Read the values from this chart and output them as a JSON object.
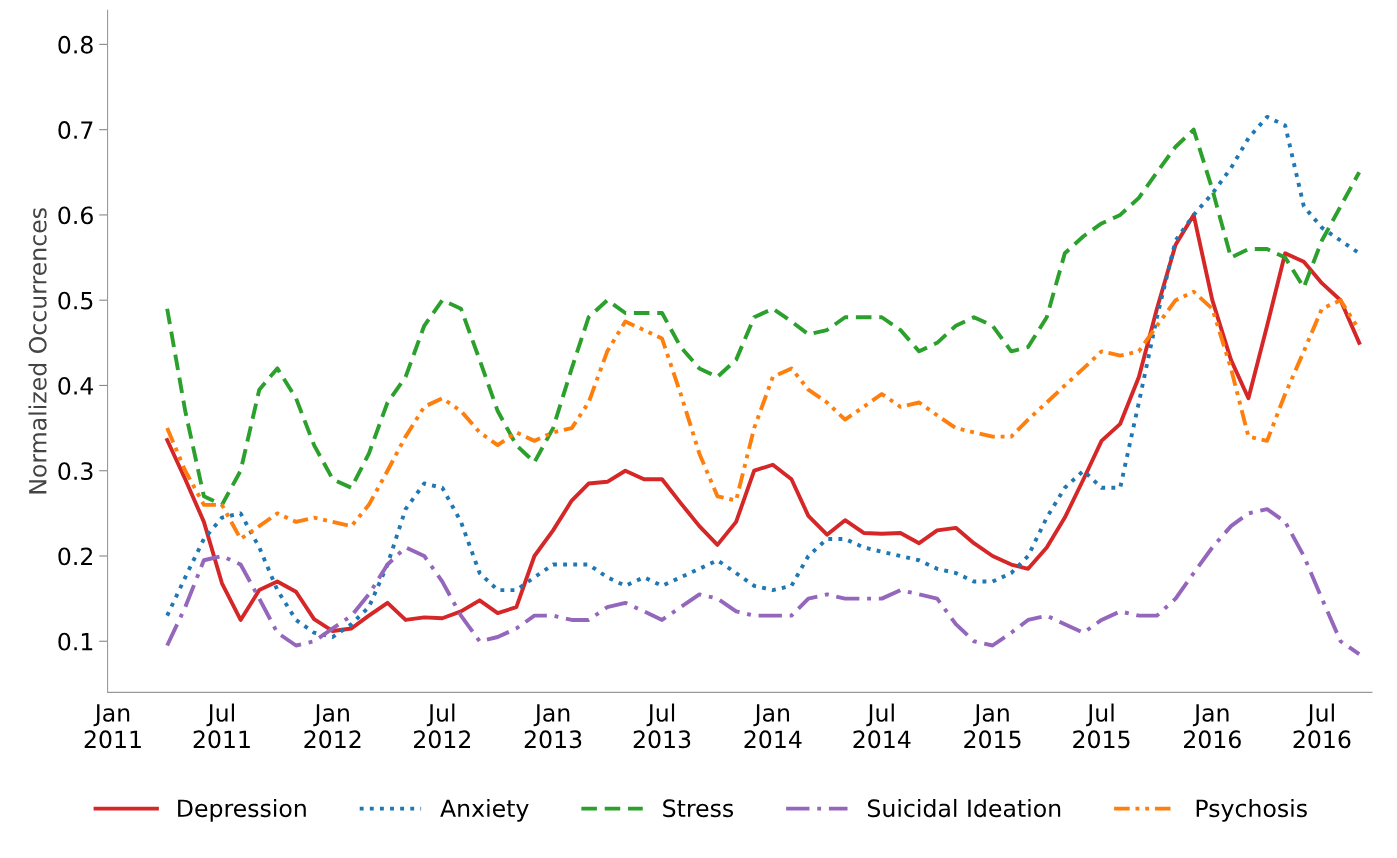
{
  "chart_data": {
    "type": "line",
    "ylabel": "Normalized Occurrences",
    "x": [
      "2011-04",
      "2011-05",
      "2011-06",
      "2011-07",
      "2011-08",
      "2011-09",
      "2011-10",
      "2011-11",
      "2011-12",
      "2012-01",
      "2012-02",
      "2012-03",
      "2012-04",
      "2012-05",
      "2012-06",
      "2012-07",
      "2012-08",
      "2012-09",
      "2012-10",
      "2012-11",
      "2012-12",
      "2013-01",
      "2013-02",
      "2013-03",
      "2013-04",
      "2013-05",
      "2013-06",
      "2013-07",
      "2013-08",
      "2013-09",
      "2013-10",
      "2013-11",
      "2013-12",
      "2014-01",
      "2014-02",
      "2014-03",
      "2014-04",
      "2014-05",
      "2014-06",
      "2014-07",
      "2014-08",
      "2014-09",
      "2014-10",
      "2014-11",
      "2014-12",
      "2015-01",
      "2015-02",
      "2015-03",
      "2015-04",
      "2015-05",
      "2015-06",
      "2015-07",
      "2015-08",
      "2015-09",
      "2015-10",
      "2015-11",
      "2015-12",
      "2016-01",
      "2016-02",
      "2016-03",
      "2016-04",
      "2016-05",
      "2016-06",
      "2016-07",
      "2016-08",
      "2016-09"
    ],
    "series": [
      {
        "name": "Depression",
        "color": "#d62728",
        "line_style": "solid",
        "values": [
          0.336,
          0.29,
          0.24,
          0.168,
          0.125,
          0.16,
          0.17,
          0.158,
          0.126,
          0.112,
          0.115,
          0.13,
          0.145,
          0.125,
          0.128,
          0.127,
          0.135,
          0.148,
          0.133,
          0.14,
          0.2,
          0.23,
          0.265,
          0.285,
          0.287,
          0.3,
          0.29,
          0.29,
          0.262,
          0.235,
          0.213,
          0.24,
          0.3,
          0.307,
          0.29,
          0.247,
          0.225,
          0.242,
          0.227,
          0.226,
          0.227,
          0.215,
          0.23,
          0.233,
          0.215,
          0.2,
          0.19,
          0.185,
          0.21,
          0.245,
          0.29,
          0.335,
          0.355,
          0.41,
          0.49,
          0.565,
          0.6,
          0.5,
          0.43,
          0.385,
          0.47,
          0.555,
          0.545,
          0.52,
          0.5,
          0.45
        ]
      },
      {
        "name": "Anxiety",
        "color": "#1f77b4",
        "line_style": "dotted",
        "values": [
          0.13,
          0.175,
          0.22,
          0.245,
          0.25,
          0.21,
          0.16,
          0.125,
          0.11,
          0.105,
          0.12,
          0.14,
          0.19,
          0.255,
          0.285,
          0.28,
          0.24,
          0.18,
          0.16,
          0.16,
          0.175,
          0.19,
          0.19,
          0.19,
          0.175,
          0.165,
          0.175,
          0.165,
          0.175,
          0.185,
          0.195,
          0.18,
          0.165,
          0.16,
          0.165,
          0.2,
          0.22,
          0.22,
          0.21,
          0.205,
          0.2,
          0.195,
          0.185,
          0.18,
          0.17,
          0.17,
          0.18,
          0.2,
          0.245,
          0.28,
          0.3,
          0.28,
          0.28,
          0.38,
          0.48,
          0.57,
          0.6,
          0.625,
          0.655,
          0.69,
          0.715,
          0.705,
          0.61,
          0.585,
          0.57,
          0.555
        ]
      },
      {
        "name": "Stress",
        "color": "#2ca02c",
        "line_style": "dashed",
        "values": [
          0.49,
          0.37,
          0.27,
          0.26,
          0.3,
          0.395,
          0.42,
          0.385,
          0.33,
          0.29,
          0.28,
          0.32,
          0.38,
          0.41,
          0.47,
          0.5,
          0.49,
          0.43,
          0.37,
          0.33,
          0.31,
          0.35,
          0.42,
          0.48,
          0.5,
          0.485,
          0.485,
          0.485,
          0.445,
          0.42,
          0.41,
          0.43,
          0.48,
          0.49,
          0.475,
          0.46,
          0.465,
          0.48,
          0.48,
          0.48,
          0.465,
          0.44,
          0.45,
          0.47,
          0.48,
          0.47,
          0.44,
          0.445,
          0.48,
          0.555,
          0.575,
          0.59,
          0.6,
          0.62,
          0.65,
          0.68,
          0.7,
          0.63,
          0.55,
          0.56,
          0.56,
          0.55,
          0.515,
          0.57,
          0.61,
          0.65
        ]
      },
      {
        "name": "Suicidal Ideation",
        "color": "#9467bd",
        "line_style": "dashdot",
        "values": [
          0.095,
          0.14,
          0.195,
          0.2,
          0.19,
          0.15,
          0.11,
          0.095,
          0.1,
          0.115,
          0.13,
          0.155,
          0.19,
          0.21,
          0.2,
          0.17,
          0.13,
          0.1,
          0.105,
          0.115,
          0.13,
          0.13,
          0.125,
          0.125,
          0.14,
          0.145,
          0.135,
          0.125,
          0.14,
          0.155,
          0.15,
          0.135,
          0.13,
          0.13,
          0.13,
          0.15,
          0.155,
          0.15,
          0.15,
          0.15,
          0.16,
          0.155,
          0.15,
          0.12,
          0.1,
          0.095,
          0.11,
          0.125,
          0.13,
          0.12,
          0.11,
          0.125,
          0.135,
          0.13,
          0.13,
          0.15,
          0.18,
          0.21,
          0.235,
          0.25,
          0.255,
          0.24,
          0.2,
          0.15,
          0.1,
          0.085
        ]
      },
      {
        "name": "Psychosis",
        "color": "#ff7f0e",
        "line_style": "dashdotdot",
        "values": [
          0.35,
          0.3,
          0.26,
          0.26,
          0.22,
          0.235,
          0.25,
          0.24,
          0.245,
          0.24,
          0.235,
          0.26,
          0.3,
          0.34,
          0.375,
          0.385,
          0.37,
          0.345,
          0.33,
          0.345,
          0.335,
          0.345,
          0.35,
          0.38,
          0.44,
          0.475,
          0.465,
          0.455,
          0.39,
          0.32,
          0.27,
          0.265,
          0.35,
          0.41,
          0.42,
          0.395,
          0.38,
          0.36,
          0.375,
          0.39,
          0.375,
          0.38,
          0.365,
          0.35,
          0.345,
          0.34,
          0.34,
          0.36,
          0.38,
          0.4,
          0.42,
          0.44,
          0.435,
          0.44,
          0.47,
          0.5,
          0.51,
          0.49,
          0.42,
          0.34,
          0.335,
          0.39,
          0.44,
          0.49,
          0.5,
          0.465
        ]
      }
    ],
    "xlim": [
      "2010-12-23",
      "2016-09-22"
    ],
    "xticks": [
      {
        "value": "2011-01-01",
        "label": "Jan\n2011"
      },
      {
        "value": "2011-07-01",
        "label": "Jul\n2011"
      },
      {
        "value": "2012-01-01",
        "label": "Jan\n2012"
      },
      {
        "value": "2012-07-01",
        "label": "Jul\n2012"
      },
      {
        "value": "2013-01-01",
        "label": "Jan\n2013"
      },
      {
        "value": "2013-07-01",
        "label": "Jul\n2013"
      },
      {
        "value": "2014-01-01",
        "label": "Jan\n2014"
      },
      {
        "value": "2014-07-01",
        "label": "Jul\n2014"
      },
      {
        "value": "2015-01-01",
        "label": "Jan\n2015"
      },
      {
        "value": "2015-07-01",
        "label": "Jul\n2015"
      },
      {
        "value": "2016-01-01",
        "label": "Jan\n2016"
      },
      {
        "value": "2016-07-01",
        "label": "Jul\n2016"
      }
    ],
    "ylim": [
      0.04,
      0.84
    ],
    "yticks": [
      0.1,
      0.2,
      0.3,
      0.4,
      0.5,
      0.6,
      0.7,
      0.8
    ],
    "grid": false,
    "legend": "bottom",
    "marker": "none"
  }
}
